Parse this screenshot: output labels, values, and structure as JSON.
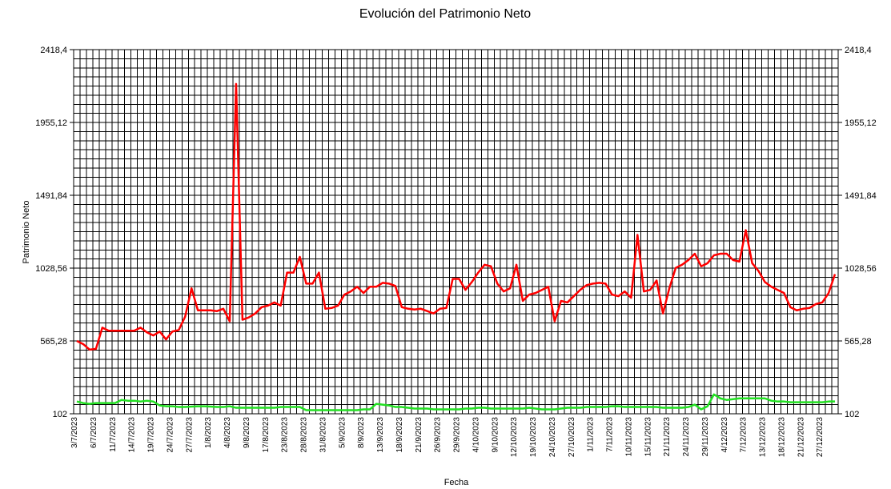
{
  "chart_data": {
    "type": "line",
    "title": "Evolución del Patrimonio Neto",
    "y_label": "Patrimonio Neto",
    "x_label": "Fecha",
    "ylim": [
      102,
      2418.4
    ],
    "yticks": [
      102,
      {
        "value": 565.28,
        "label": "565,28"
      },
      {
        "value": 1028.56,
        "label": "1028,56"
      },
      {
        "value": 1491.84,
        "label": "1491,84"
      },
      {
        "value": 1955.12,
        "label": "1955,12"
      },
      {
        "value": 2418.4,
        "label": "2418,4"
      }
    ],
    "y_minor_divisions": 8,
    "grid": true,
    "categories": [
      "3/7/2023",
      null,
      null,
      "6/7/2023",
      null,
      null,
      "11/7/2023",
      null,
      null,
      "14/7/2023",
      null,
      null,
      "19/7/2023",
      null,
      null,
      "24/7/2023",
      null,
      null,
      "27/7/2023",
      null,
      null,
      "1/8/2023",
      null,
      null,
      "4/8/2023",
      null,
      null,
      "9/8/2023",
      null,
      null,
      "17/8/2023",
      null,
      null,
      "23/8/2023",
      null,
      null,
      "28/8/2023",
      null,
      null,
      "31/8/2023",
      null,
      null,
      "5/9/2023",
      null,
      null,
      "8/9/2023",
      null,
      null,
      "13/9/2023",
      null,
      null,
      "18/9/2023",
      null,
      null,
      "21/9/2023",
      null,
      null,
      "26/9/2023",
      null,
      null,
      "29/9/2023",
      null,
      null,
      "4/10/2023",
      null,
      null,
      "9/10/2023",
      null,
      null,
      "12/10/2023",
      null,
      null,
      "19/10/2023",
      null,
      null,
      "24/10/2023",
      null,
      null,
      "27/10/2023",
      null,
      null,
      "1/11/2023",
      null,
      null,
      "7/11/2023",
      null,
      null,
      "10/11/2023",
      null,
      null,
      "15/11/2023",
      null,
      null,
      "21/11/2023",
      null,
      null,
      "24/11/2023",
      null,
      null,
      "29/11/2023",
      null,
      null,
      "4/12/2023",
      null,
      null,
      "7/12/2023",
      null,
      null,
      "13/12/2023",
      null,
      null,
      "18/12/2023",
      null,
      null,
      "21/12/2023",
      null,
      null,
      "27/12/2023",
      null,
      null
    ],
    "series": [
      {
        "color": "#ff0000",
        "values": [
          565,
          545,
          510,
          515,
          650,
          630,
          630,
          630,
          630,
          630,
          650,
          620,
          600,
          625,
          575,
          625,
          635,
          720,
          900,
          760,
          760,
          760,
          755,
          770,
          690,
          2200,
          700,
          715,
          740,
          780,
          790,
          810,
          790,
          1000,
          1000,
          1100,
          930,
          930,
          1000,
          770,
          775,
          790,
          860,
          880,
          910,
          870,
          910,
          910,
          935,
          930,
          915,
          780,
          770,
          765,
          770,
          755,
          740,
          770,
          775,
          960,
          960,
          890,
          940,
          1000,
          1050,
          1040,
          930,
          880,
          900,
          1050,
          820,
          860,
          870,
          890,
          910,
          690,
          820,
          810,
          850,
          890,
          920,
          930,
          935,
          930,
          860,
          850,
          880,
          840,
          1240,
          880,
          890,
          950,
          740,
          900,
          1030,
          1050,
          1080,
          1120,
          1040,
          1060,
          1110,
          1120,
          1120,
          1080,
          1070,
          1270,
          1060,
          1010,
          940,
          910,
          890,
          870,
          780,
          760,
          770,
          775,
          800,
          810,
          870,
          990
        ]
      },
      {
        "color": "#22e022",
        "values": [
          180,
          170,
          165,
          170,
          170,
          170,
          170,
          190,
          185,
          185,
          180,
          185,
          180,
          155,
          150,
          150,
          145,
          145,
          148,
          150,
          150,
          148,
          145,
          145,
          150,
          140,
          140,
          140,
          140,
          140,
          140,
          140,
          145,
          145,
          145,
          145,
          125,
          125,
          125,
          125,
          125,
          125,
          125,
          125,
          125,
          130,
          130,
          165,
          160,
          155,
          145,
          145,
          140,
          135,
          135,
          135,
          130,
          130,
          130,
          130,
          130,
          135,
          135,
          140,
          140,
          135,
          135,
          135,
          135,
          135,
          135,
          140,
          135,
          130,
          130,
          130,
          135,
          140,
          140,
          140,
          145,
          145,
          145,
          145,
          150,
          150,
          145,
          145,
          145,
          145,
          145,
          145,
          140,
          140,
          140,
          140,
          145,
          160,
          130,
          150,
          225,
          200,
          190,
          195,
          200,
          200,
          200,
          200,
          200,
          185,
          180,
          180,
          175,
          175,
          175,
          175,
          175,
          175,
          180,
          180
        ]
      }
    ]
  }
}
